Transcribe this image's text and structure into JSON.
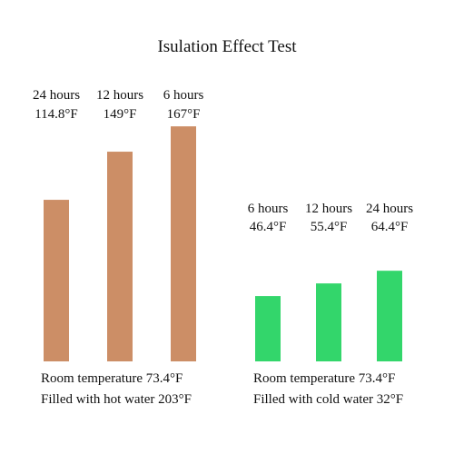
{
  "chart_data": [
    {
      "type": "bar",
      "title": "Isulation Effect Test",
      "categories": [
        "24 hours",
        "12 hours",
        "6 hours"
      ],
      "values": [
        114.8,
        149,
        167
      ],
      "value_labels": [
        "114.8°F",
        "149°F",
        "167°F"
      ],
      "bar_color": "#cc8e66",
      "notes": [
        "Room temperature 73.4°F",
        "Filled with hot water 203°F"
      ],
      "ylim": [
        0,
        200
      ]
    },
    {
      "type": "bar",
      "categories": [
        "6 hours",
        "12 hours",
        "24 hours"
      ],
      "values": [
        46.4,
        55.4,
        64.4
      ],
      "value_labels": [
        "46.4°F",
        "55.4°F",
        "64.4°F"
      ],
      "bar_color": "#33d66b",
      "notes": [
        "Room temperature 73.4°F",
        "Filled with cold water 32°F"
      ],
      "ylim": [
        0,
        200
      ]
    }
  ]
}
